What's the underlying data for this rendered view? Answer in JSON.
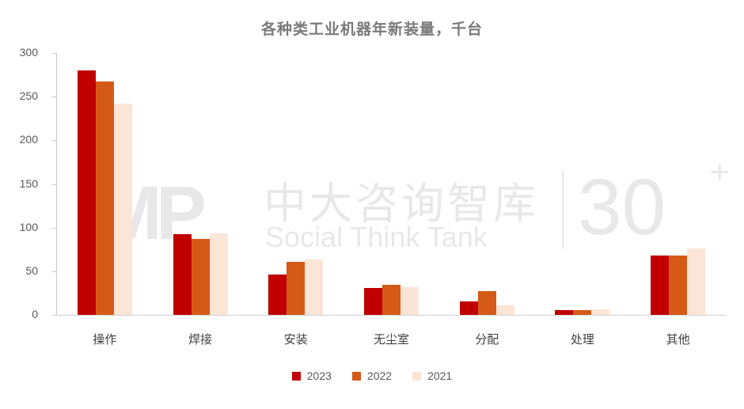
{
  "chart_data": {
    "type": "bar",
    "title": "各种类工业机器年新装量，千台",
    "xlabel": "",
    "ylabel": "",
    "ylim": [
      0,
      300
    ],
    "yticks": [
      0,
      50,
      100,
      150,
      200,
      250,
      300
    ],
    "grid": false,
    "legend_position": "bottom",
    "categories": [
      "操作",
      "焊接",
      "安装",
      "无尘室",
      "分配",
      "处理",
      "其他"
    ],
    "series": [
      {
        "name": "2023",
        "color": "#c00000",
        "values": [
          280,
          92,
          46,
          31,
          15,
          5,
          68
        ]
      },
      {
        "name": "2022",
        "color": "#d55a17",
        "values": [
          267,
          87,
          61,
          34,
          27,
          5,
          68
        ]
      },
      {
        "name": "2021",
        "color": "#fbe5d6",
        "values": [
          242,
          93,
          63,
          32,
          11,
          6,
          76
        ]
      }
    ]
  },
  "watermark": {
    "logo": "MP",
    "cn": "中大咨询智库",
    "en": "Social Think Tank",
    "badge": "30",
    "plus": "+"
  }
}
